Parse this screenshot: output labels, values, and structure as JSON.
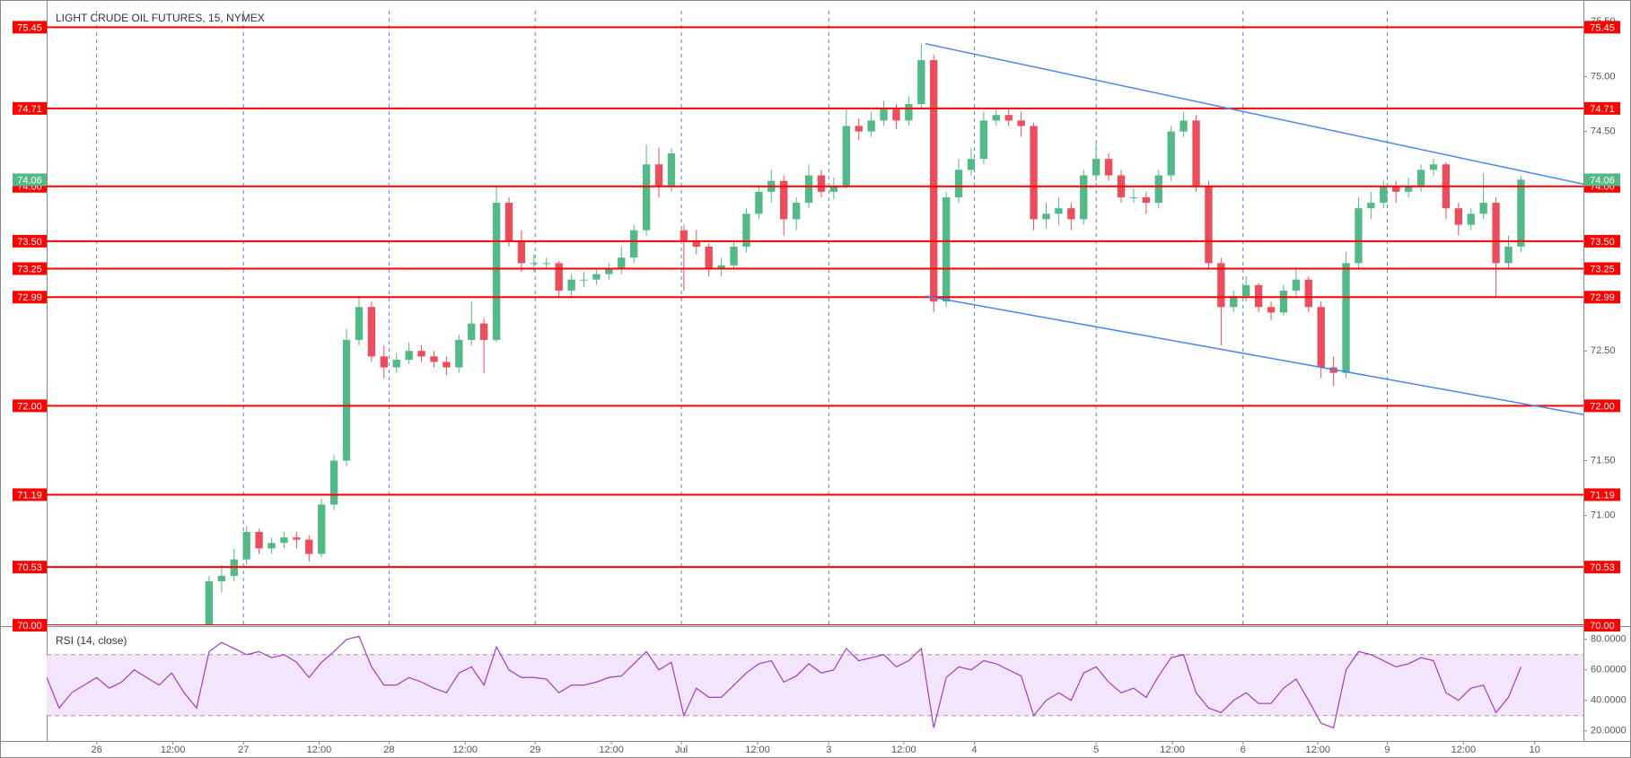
{
  "chart_data": [
    {
      "type": "candlestick",
      "title": "LIGHT CRUDE OIL FUTURES, 15, NYMEX",
      "xlim": [
        0,
        123
      ],
      "ylim": [
        70,
        75.6
      ],
      "yticks": [
        {
          "value": 70.5,
          "label": "70.50"
        },
        {
          "value": 71,
          "label": "71.00"
        },
        {
          "value": 71.5,
          "label": "71.50"
        },
        {
          "value": 72,
          "label": "72.00"
        },
        {
          "value": 72.5,
          "label": "72.50"
        },
        {
          "value": 73,
          "label": "73.00"
        },
        {
          "value": 73.5,
          "label": "73.50"
        },
        {
          "value": 74,
          "label": "74.00"
        },
        {
          "value": 74.5,
          "label": "74.50"
        },
        {
          "value": 75,
          "label": "75.00"
        },
        {
          "value": 75.5,
          "label": "75.50"
        }
      ],
      "vlines": [
        4,
        15.75,
        27.4,
        39.1,
        50.8,
        62.6,
        74.25,
        84,
        95.75,
        107.3
      ],
      "up_color": "#53b987",
      "down_color": "#eb4d5c",
      "level_color": "#ff0000",
      "trend_color": "#4a86e8",
      "levels": [
        75.45,
        74.71,
        {
          "value": 74,
          "label": "74.00"
        },
        {
          "value": 73.5,
          "label": "73.50"
        },
        73.25,
        72.99,
        {
          "value": 72,
          "label": "72.00"
        },
        71.19,
        70.53,
        {
          "value": 70,
          "label": "70.00"
        }
      ],
      "last_price": 74.06,
      "trendlines": [
        {
          "x": [
            70.33,
            123
          ],
          "y": [
            75.3,
            74.02
          ]
        },
        {
          "x": [
            70.33,
            123
          ],
          "y": [
            73.0,
            71.92
          ]
        }
      ],
      "x": [
        13,
        14,
        15,
        16,
        17,
        18,
        19,
        20,
        21,
        22,
        23,
        24,
        25,
        26,
        27,
        28,
        29,
        30,
        31,
        32,
        33,
        34,
        35,
        36,
        37,
        38,
        39,
        40,
        41,
        42,
        43,
        44,
        45,
        46,
        47,
        48,
        49,
        50,
        51,
        52,
        53,
        54,
        55,
        56,
        57,
        58,
        59,
        60,
        61,
        62,
        63,
        64,
        65,
        66,
        67,
        68,
        69,
        70,
        71,
        72,
        73,
        74,
        75,
        76,
        77,
        78,
        79,
        80,
        81,
        82,
        83,
        84,
        85,
        86,
        87,
        88,
        89,
        90,
        91,
        92,
        93,
        94,
        95,
        96,
        97,
        98,
        99,
        100,
        101,
        102,
        103,
        104,
        105,
        106,
        107,
        108,
        109,
        110,
        111,
        112,
        113,
        114,
        115,
        116,
        117,
        118
      ],
      "open": [
        70.0,
        70.4,
        70.45,
        70.6,
        70.85,
        70.7,
        70.75,
        70.8,
        70.78,
        70.65,
        71.1,
        71.5,
        72.6,
        72.9,
        72.45,
        72.35,
        72.42,
        72.5,
        72.45,
        72.4,
        72.35,
        72.6,
        72.75,
        72.6,
        73.85,
        73.5,
        73.3,
        73.3,
        73.3,
        73.05,
        73.15,
        73.15,
        73.2,
        73.25,
        73.35,
        73.6,
        74.2,
        74.0,
        73.6,
        73.5,
        73.45,
        73.25,
        73.28,
        73.45,
        73.75,
        73.95,
        74.05,
        73.7,
        73.85,
        74.1,
        73.95,
        74.0,
        74.55,
        74.5,
        74.6,
        74.7,
        74.6,
        74.75,
        75.15,
        72.95,
        73.9,
        74.15,
        74.25,
        74.6,
        74.65,
        74.6,
        74.55,
        73.7,
        73.75,
        73.8,
        73.7,
        74.1,
        74.25,
        74.1,
        73.9,
        73.9,
        73.85,
        74.1,
        74.5,
        74.6,
        74.0,
        73.3,
        72.9,
        73.0,
        73.1,
        72.9,
        72.85,
        73.05,
        73.15,
        72.9,
        72.35,
        72.3,
        73.3,
        73.8,
        73.85,
        74.0,
        73.95,
        74.0,
        74.15,
        74.2,
        73.8,
        73.65,
        73.75,
        73.85,
        73.3,
        73.45
      ],
      "high": [
        70.45,
        70.55,
        70.7,
        70.9,
        70.88,
        70.8,
        70.85,
        70.85,
        70.82,
        71.15,
        71.55,
        72.7,
        73.0,
        72.95,
        72.55,
        72.48,
        72.58,
        72.55,
        72.5,
        72.45,
        72.65,
        72.95,
        72.8,
        74.0,
        73.9,
        73.6,
        73.38,
        73.35,
        73.32,
        73.2,
        73.22,
        73.25,
        73.3,
        73.45,
        73.65,
        74.38,
        74.35,
        74.35,
        73.65,
        73.6,
        73.48,
        73.35,
        73.5,
        73.8,
        74.0,
        74.15,
        74.1,
        73.9,
        74.2,
        74.15,
        74.08,
        74.7,
        74.62,
        74.68,
        74.78,
        74.75,
        74.82,
        75.3,
        75.2,
        73.95,
        74.25,
        74.35,
        74.68,
        74.72,
        74.7,
        74.68,
        74.58,
        73.85,
        73.9,
        73.85,
        74.15,
        74.4,
        74.3,
        74.15,
        73.98,
        73.95,
        74.15,
        74.55,
        74.68,
        74.65,
        74.05,
        73.35,
        73.05,
        73.18,
        73.12,
        72.95,
        73.1,
        73.25,
        73.18,
        72.95,
        72.45,
        73.4,
        73.9,
        73.95,
        74.05,
        74.05,
        74.08,
        74.2,
        74.25,
        74.22,
        73.85,
        73.8,
        74.12,
        73.9,
        73.55,
        74.1
      ],
      "low": [
        70.0,
        70.3,
        70.4,
        70.55,
        70.65,
        70.65,
        70.7,
        70.7,
        70.58,
        70.62,
        71.05,
        71.45,
        72.55,
        72.4,
        72.25,
        72.3,
        72.38,
        72.4,
        72.35,
        72.28,
        72.3,
        72.55,
        72.3,
        72.58,
        73.45,
        73.22,
        73.22,
        73.25,
        72.98,
        73.0,
        73.08,
        73.1,
        73.15,
        73.2,
        73.3,
        73.55,
        73.9,
        73.95,
        73.05,
        73.38,
        73.18,
        73.18,
        73.25,
        73.4,
        73.7,
        73.85,
        73.55,
        73.6,
        73.8,
        73.9,
        73.88,
        73.98,
        74.42,
        74.45,
        74.55,
        74.52,
        74.55,
        74.7,
        72.85,
        72.9,
        73.85,
        74.1,
        74.2,
        74.55,
        74.55,
        74.45,
        73.6,
        73.62,
        73.65,
        73.6,
        73.65,
        74.05,
        74.05,
        73.85,
        73.85,
        73.75,
        73.8,
        74.05,
        74.45,
        73.95,
        73.25,
        72.55,
        72.85,
        72.95,
        72.85,
        72.78,
        72.82,
        73.0,
        72.85,
        72.25,
        72.18,
        72.25,
        73.25,
        73.7,
        73.8,
        73.85,
        73.9,
        73.95,
        74.1,
        73.7,
        73.55,
        73.6,
        73.7,
        72.99,
        73.25,
        73.4
      ],
      "close": [
        70.4,
        70.45,
        70.6,
        70.85,
        70.7,
        70.75,
        70.8,
        70.78,
        70.65,
        71.1,
        71.5,
        72.6,
        72.9,
        72.45,
        72.35,
        72.42,
        72.5,
        72.45,
        72.4,
        72.35,
        72.6,
        72.75,
        72.6,
        73.85,
        73.5,
        73.3,
        73.3,
        73.3,
        73.05,
        73.15,
        73.15,
        73.2,
        73.25,
        73.35,
        73.6,
        74.2,
        74.0,
        74.3,
        73.5,
        73.45,
        73.25,
        73.28,
        73.45,
        73.75,
        73.95,
        74.05,
        73.7,
        73.85,
        74.1,
        73.95,
        74.0,
        74.55,
        74.5,
        74.6,
        74.7,
        74.6,
        74.75,
        75.15,
        72.95,
        73.9,
        74.15,
        74.25,
        74.6,
        74.65,
        74.6,
        74.55,
        73.7,
        73.75,
        73.8,
        73.7,
        74.1,
        74.25,
        74.1,
        73.9,
        73.9,
        73.85,
        74.1,
        74.5,
        74.6,
        74.0,
        73.3,
        72.9,
        73.0,
        73.1,
        72.9,
        72.85,
        73.05,
        73.15,
        72.9,
        72.35,
        72.3,
        73.3,
        73.8,
        73.85,
        74.0,
        73.95,
        74.0,
        74.15,
        74.2,
        73.8,
        73.65,
        73.75,
        73.85,
        73.3,
        73.45,
        74.06
      ]
    },
    {
      "type": "line",
      "title": "RSI (14, close)",
      "color": "#a33cc1",
      "band": [
        30,
        70
      ],
      "band_color": "#f3e6fc",
      "xlim": [
        0,
        123
      ],
      "ylim": [
        14,
        87.5
      ],
      "yticks": [
        {
          "value": 20,
          "label": "20.0000"
        },
        {
          "value": 40,
          "label": "40.0000"
        },
        {
          "value": 60,
          "label": "60.0000"
        },
        {
          "value": 80,
          "label": "80.0000"
        }
      ],
      "xticks": [
        {
          "value": 4,
          "label": "26"
        },
        {
          "value": 10.1,
          "label": "12:00"
        },
        {
          "value": 15.75,
          "label": "27"
        },
        {
          "value": 21.8,
          "label": "12:00"
        },
        {
          "value": 27.4,
          "label": "28"
        },
        {
          "value": 33.5,
          "label": "12:00"
        },
        {
          "value": 39.1,
          "label": "29"
        },
        {
          "value": 45.2,
          "label": "12:00"
        },
        {
          "value": 50.8,
          "label": "Jul"
        },
        {
          "value": 56.9,
          "label": "12:00"
        },
        {
          "value": 62.6,
          "label": "3"
        },
        {
          "value": 68.6,
          "label": "12:00"
        },
        {
          "value": 74.25,
          "label": "4"
        },
        {
          "value": 84,
          "label": "5"
        },
        {
          "value": 90.1,
          "label": "12:00"
        },
        {
          "value": 95.75,
          "label": "6"
        },
        {
          "value": 101.75,
          "label": "12:00"
        },
        {
          "value": 107.3,
          "label": "9"
        },
        {
          "value": 113.4,
          "label": "12:00"
        },
        {
          "value": 119.1,
          "label": "10"
        }
      ],
      "x": [
        0,
        1,
        2,
        3,
        4,
        5,
        6,
        7,
        8,
        9,
        10,
        11,
        12,
        13,
        14,
        15,
        16,
        17,
        18,
        19,
        20,
        21,
        22,
        23,
        24,
        25,
        26,
        27,
        28,
        29,
        30,
        31,
        32,
        33,
        34,
        35,
        36,
        37,
        38,
        39,
        40,
        41,
        42,
        43,
        44,
        45,
        46,
        47,
        48,
        49,
        50,
        51,
        52,
        53,
        54,
        55,
        56,
        57,
        58,
        59,
        60,
        61,
        62,
        63,
        64,
        65,
        66,
        67,
        68,
        69,
        70,
        71,
        72,
        73,
        74,
        75,
        76,
        77,
        78,
        79,
        80,
        81,
        82,
        83,
        84,
        85,
        86,
        87,
        88,
        89,
        90,
        91,
        92,
        93,
        94,
        95,
        96,
        97,
        98,
        99,
        100,
        101,
        102,
        103,
        104,
        105,
        106,
        107,
        108,
        109,
        110,
        111,
        112,
        113,
        114,
        115,
        116,
        117,
        118
      ],
      "values": [
        55,
        35,
        45,
        50,
        55,
        48,
        52,
        60,
        55,
        50,
        58,
        45,
        35,
        72,
        78,
        74,
        70,
        72,
        68,
        70,
        65,
        55,
        65,
        72,
        80,
        82,
        62,
        50,
        50,
        55,
        52,
        48,
        45,
        58,
        62,
        50,
        75,
        60,
        55,
        55,
        54,
        45,
        50,
        50,
        52,
        55,
        56,
        64,
        72,
        60,
        65,
        30,
        48,
        42,
        42,
        50,
        58,
        64,
        66,
        52,
        56,
        64,
        58,
        60,
        74,
        66,
        68,
        70,
        62,
        66,
        74,
        22,
        55,
        62,
        60,
        66,
        64,
        60,
        56,
        30,
        40,
        45,
        40,
        58,
        62,
        52,
        45,
        48,
        42,
        56,
        68,
        70,
        45,
        35,
        32,
        40,
        45,
        38,
        38,
        48,
        54,
        40,
        25,
        22,
        60,
        72,
        70,
        66,
        62,
        64,
        68,
        66,
        45,
        40,
        48,
        50,
        32,
        42,
        62
      ]
    }
  ]
}
